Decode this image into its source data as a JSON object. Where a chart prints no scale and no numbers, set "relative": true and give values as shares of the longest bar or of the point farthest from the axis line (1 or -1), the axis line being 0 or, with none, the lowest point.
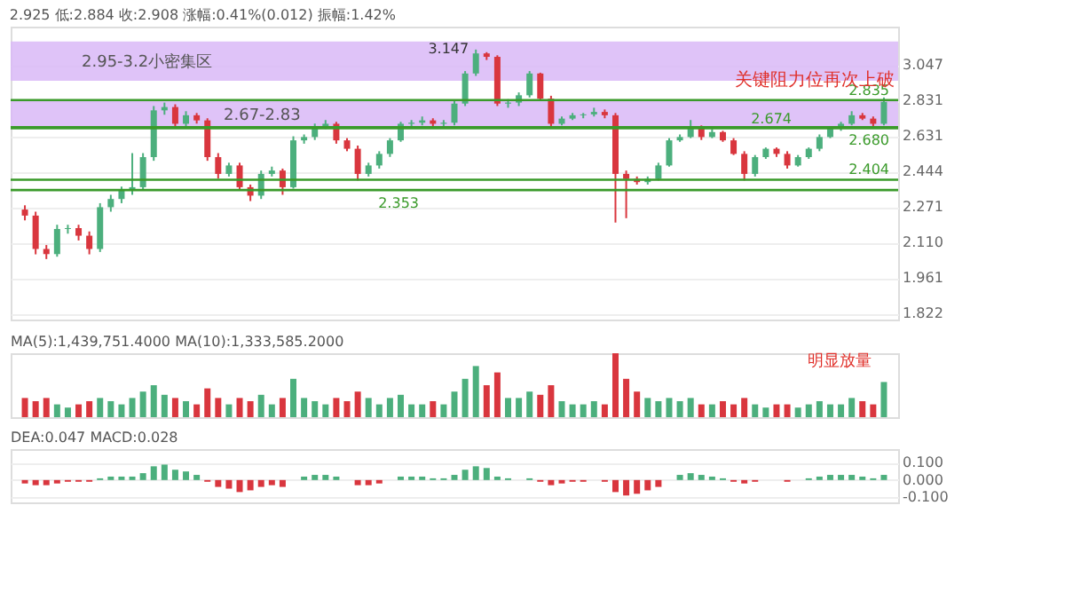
{
  "chart_data": [
    {
      "type": "candlestick",
      "title": "2.925 低:2.884 收:2.908 涨幅:0.41%(0.012) 振幅:1.42%",
      "categories": [
        null,
        null,
        null,
        null,
        null,
        null,
        null,
        null,
        null,
        null,
        null,
        null,
        null,
        null,
        null,
        null,
        null,
        null,
        null,
        null,
        null,
        null,
        null,
        null,
        null,
        null,
        null,
        null,
        null,
        null,
        null,
        null,
        null,
        null,
        null,
        null,
        null,
        null,
        null,
        null,
        null,
        null,
        null,
        null,
        null,
        null,
        null,
        null,
        null,
        null,
        null,
        null,
        null,
        null,
        null,
        null,
        null,
        null,
        null,
        null,
        null,
        null,
        null,
        null,
        null,
        null,
        null,
        null,
        null,
        null,
        null,
        null,
        null,
        null,
        null,
        null,
        null,
        null,
        null,
        null,
        null
      ],
      "ohlc": [
        [
          2.26,
          2.28,
          2.21,
          2.232
        ],
        [
          2.232,
          2.25,
          2.06,
          2.083
        ],
        [
          2.083,
          2.1,
          2.04,
          2.061
        ],
        [
          2.061,
          2.19,
          2.05,
          2.171
        ],
        [
          2.171,
          2.19,
          2.15,
          2.175
        ],
        [
          2.175,
          2.19,
          2.12,
          2.141
        ],
        [
          2.141,
          2.16,
          2.06,
          2.083
        ],
        [
          2.083,
          2.29,
          2.07,
          2.271
        ],
        [
          2.271,
          2.33,
          2.25,
          2.31
        ],
        [
          2.31,
          2.37,
          2.29,
          2.351
        ],
        [
          2.351,
          2.54,
          2.33,
          2.367
        ],
        [
          2.367,
          2.54,
          2.35,
          2.519
        ],
        [
          2.519,
          2.8,
          2.5,
          2.775
        ],
        [
          2.775,
          2.82,
          2.75,
          2.794
        ],
        [
          2.794,
          2.81,
          2.68,
          2.699
        ],
        [
          2.699,
          2.77,
          2.68,
          2.747
        ],
        [
          2.747,
          2.76,
          2.7,
          2.718
        ],
        [
          2.718,
          2.73,
          2.5,
          2.519
        ],
        [
          2.519,
          2.54,
          2.41,
          2.433
        ],
        [
          2.433,
          2.49,
          2.42,
          2.476
        ],
        [
          2.476,
          2.49,
          2.35,
          2.367
        ],
        [
          2.367,
          2.38,
          2.3,
          2.326
        ],
        [
          2.326,
          2.45,
          2.31,
          2.433
        ],
        [
          2.433,
          2.47,
          2.42,
          2.45
        ],
        [
          2.45,
          2.46,
          2.33,
          2.367
        ],
        [
          2.367,
          2.63,
          2.36,
          2.608
        ],
        [
          2.608,
          2.64,
          2.59,
          2.626
        ],
        [
          2.626,
          2.7,
          2.61,
          2.681
        ],
        [
          2.681,
          2.72,
          2.67,
          2.699
        ],
        [
          2.699,
          2.71,
          2.59,
          2.608
        ],
        [
          2.608,
          2.62,
          2.55,
          2.563
        ],
        [
          2.563,
          2.58,
          2.4,
          2.433
        ],
        [
          2.433,
          2.49,
          2.42,
          2.476
        ],
        [
          2.476,
          2.55,
          2.46,
          2.536
        ],
        [
          2.536,
          2.62,
          2.52,
          2.608
        ],
        [
          2.608,
          2.71,
          2.6,
          2.699
        ],
        [
          2.699,
          2.72,
          2.68,
          2.705
        ],
        [
          2.705,
          2.74,
          2.69,
          2.718
        ],
        [
          2.718,
          2.73,
          2.68,
          2.699
        ],
        [
          2.699,
          2.72,
          2.68,
          2.705
        ],
        [
          2.705,
          2.83,
          2.69,
          2.814
        ],
        [
          2.814,
          3.01,
          2.8,
          2.995
        ],
        [
          2.995,
          3.147,
          2.98,
          3.122
        ],
        [
          3.122,
          3.13,
          3.08,
          3.1
        ],
        [
          3.1,
          3.11,
          2.8,
          2.814
        ],
        [
          2.814,
          2.84,
          2.79,
          2.82
        ],
        [
          2.82,
          2.88,
          2.8,
          2.863
        ],
        [
          2.863,
          3.01,
          2.85,
          2.995
        ],
        [
          2.995,
          3.0,
          2.83,
          2.843
        ],
        [
          2.843,
          2.86,
          2.68,
          2.699
        ],
        [
          2.699,
          2.74,
          2.69,
          2.728
        ],
        [
          2.728,
          2.76,
          2.72,
          2.747
        ],
        [
          2.747,
          2.76,
          2.73,
          2.752
        ],
        [
          2.752,
          2.79,
          2.74,
          2.766
        ],
        [
          2.766,
          2.78,
          2.73,
          2.747
        ],
        [
          2.747,
          2.76,
          2.2,
          2.433
        ],
        [
          2.433,
          2.45,
          2.22,
          2.408
        ],
        [
          2.408,
          2.42,
          2.38,
          2.392
        ],
        [
          2.392,
          2.42,
          2.38,
          2.408
        ],
        [
          2.408,
          2.49,
          2.4,
          2.476
        ],
        [
          2.476,
          2.62,
          2.47,
          2.608
        ],
        [
          2.608,
          2.64,
          2.6,
          2.626
        ],
        [
          2.626,
          2.72,
          2.62,
          2.681
        ],
        [
          2.681,
          2.69,
          2.61,
          2.626
        ],
        [
          2.626,
          2.67,
          2.62,
          2.653
        ],
        [
          2.653,
          2.66,
          2.6,
          2.608
        ],
        [
          2.608,
          2.62,
          2.53,
          2.536
        ],
        [
          2.536,
          2.55,
          2.4,
          2.433
        ],
        [
          2.433,
          2.53,
          2.42,
          2.519
        ],
        [
          2.519,
          2.57,
          2.51,
          2.563
        ],
        [
          2.563,
          2.57,
          2.52,
          2.536
        ],
        [
          2.536,
          2.55,
          2.46,
          2.476
        ],
        [
          2.476,
          2.53,
          2.47,
          2.519
        ],
        [
          2.519,
          2.57,
          2.51,
          2.563
        ],
        [
          2.563,
          2.64,
          2.55,
          2.626
        ],
        [
          2.626,
          2.68,
          2.62,
          2.672
        ],
        [
          2.672,
          2.71,
          2.66,
          2.699
        ],
        [
          2.699,
          2.77,
          2.69,
          2.747
        ],
        [
          2.747,
          2.76,
          2.72,
          2.728
        ],
        [
          2.728,
          2.74,
          2.68,
          2.699
        ],
        [
          2.699,
          2.85,
          2.69,
          2.824
        ]
      ],
      "colors": [
        "#d9363e",
        "#d9363e",
        "#d9363e",
        "#4caf7d",
        "#4caf7d",
        "#d9363e",
        "#d9363e",
        "#4caf7d",
        "#4caf7d",
        "#4caf7d",
        "#4caf7d",
        "#4caf7d",
        "#4caf7d",
        "#4caf7d",
        "#d9363e",
        "#4caf7d",
        "#d9363e",
        "#d9363e",
        "#d9363e",
        "#4caf7d",
        "#d9363e",
        "#d9363e",
        "#4caf7d",
        "#4caf7d",
        "#d9363e",
        "#4caf7d",
        "#4caf7d",
        "#4caf7d",
        "#4caf7d",
        "#d9363e",
        "#d9363e",
        "#d9363e",
        "#4caf7d",
        "#4caf7d",
        "#4caf7d",
        "#4caf7d",
        "#4caf7d",
        "#4caf7d",
        "#d9363e",
        "#4caf7d",
        "#4caf7d",
        "#4caf7d",
        "#4caf7d",
        "#d9363e",
        "#d9363e",
        "#4caf7d",
        "#4caf7d",
        "#4caf7d",
        "#d9363e",
        "#d9363e",
        "#4caf7d",
        "#4caf7d",
        "#4caf7d",
        "#4caf7d",
        "#d9363e",
        "#d9363e",
        "#d9363e",
        "#d9363e",
        "#4caf7d",
        "#4caf7d",
        "#4caf7d",
        "#4caf7d",
        "#4caf7d",
        "#d9363e",
        "#4caf7d",
        "#d9363e",
        "#d9363e",
        "#d9363e",
        "#4caf7d",
        "#4caf7d",
        "#d9363e",
        "#d9363e",
        "#4caf7d",
        "#4caf7d",
        "#4caf7d",
        "#4caf7d",
        "#4caf7d",
        "#4caf7d",
        "#d9363e",
        "#d9363e",
        "#4caf7d"
      ],
      "log": "y",
      "ylim": [
        1.8,
        3.3
      ],
      "yticks": [
        1.822,
        1.961,
        {
          "value": 2.11,
          "label": "2.110"
        },
        2.271,
        2.444,
        2.631,
        2.831,
        3.047
      ],
      "grid": "y",
      "bands": [
        {
          "axis": "y",
          "from": 2.95,
          "to": 3.2,
          "label": "2.95-3.2小密集区",
          "color": "#d9b8f7"
        },
        {
          "axis": "y",
          "from": 2.67,
          "to": 2.83,
          "label": "2.67-2.83",
          "color": "#d9b8f7"
        }
      ],
      "ref_lines": [
        {
          "axis": "y",
          "value": 2.835,
          "label": "2.835",
          "color": "#3a9a2a"
        },
        {
          "axis": "y",
          "value": 2.674,
          "label": "2.674",
          "color": "#3a9a2a"
        },
        {
          "axis": "y",
          "value": 2.68,
          "label": "2.680",
          "color": "#3a9a2a"
        },
        {
          "axis": "y",
          "value": 2.404,
          "label": "2.404",
          "color": "#3a9a2a"
        },
        {
          "axis": "y",
          "value": 2.353,
          "label": "2.353",
          "color": "#3a9a2a"
        }
      ],
      "annotations": [
        {
          "text": "3.147",
          "y": 3.147
        },
        "关键阻力位再次上破"
      ]
    },
    {
      "type": "bar",
      "relative": true,
      "title": "MA(5):1,439,751.4000 MA(10):1,333,585.2000",
      "categories": [
        null,
        null,
        null,
        null,
        null,
        null,
        null,
        null,
        null,
        null,
        null,
        null,
        null,
        null,
        null,
        null,
        null,
        null,
        null,
        null,
        null,
        null,
        null,
        null,
        null,
        null,
        null,
        null,
        null,
        null,
        null,
        null,
        null,
        null,
        null,
        null,
        null,
        null,
        null,
        null,
        null,
        null,
        null,
        null,
        null,
        null,
        null,
        null,
        null,
        null,
        null,
        null,
        null,
        null,
        null,
        null,
        null,
        null,
        null,
        null,
        null,
        null,
        null,
        null,
        null,
        null,
        null,
        null,
        null,
        null,
        null,
        null,
        null,
        null,
        null,
        null,
        null,
        null,
        null,
        null,
        null
      ],
      "values": [
        0.3,
        0.25,
        0.3,
        0.2,
        0.15,
        0.2,
        0.25,
        0.3,
        0.25,
        0.2,
        0.3,
        0.4,
        0.5,
        0.35,
        0.3,
        0.25,
        0.2,
        0.45,
        0.3,
        0.2,
        0.3,
        0.25,
        0.35,
        0.2,
        0.3,
        0.6,
        0.3,
        0.25,
        0.2,
        0.3,
        0.25,
        0.4,
        0.3,
        0.2,
        0.3,
        0.35,
        0.2,
        0.2,
        0.25,
        0.2,
        0.4,
        0.6,
        0.8,
        0.5,
        0.7,
        0.3,
        0.3,
        0.4,
        0.35,
        0.5,
        0.25,
        0.2,
        0.2,
        0.25,
        0.2,
        1,
        0.6,
        0.4,
        0.3,
        0.25,
        0.3,
        0.25,
        0.3,
        0.2,
        0.2,
        0.25,
        0.2,
        0.3,
        0.2,
        0.15,
        0.2,
        0.2,
        0.15,
        0.2,
        0.25,
        0.2,
        0.2,
        0.3,
        0.25,
        0.2,
        0.55
      ],
      "colors": [
        "#d9363e",
        "#d9363e",
        "#d9363e",
        "#4caf7d",
        "#4caf7d",
        "#d9363e",
        "#d9363e",
        "#4caf7d",
        "#4caf7d",
        "#4caf7d",
        "#4caf7d",
        "#4caf7d",
        "#4caf7d",
        "#4caf7d",
        "#d9363e",
        "#4caf7d",
        "#d9363e",
        "#d9363e",
        "#d9363e",
        "#4caf7d",
        "#d9363e",
        "#d9363e",
        "#4caf7d",
        "#4caf7d",
        "#d9363e",
        "#4caf7d",
        "#4caf7d",
        "#4caf7d",
        "#4caf7d",
        "#d9363e",
        "#d9363e",
        "#d9363e",
        "#4caf7d",
        "#4caf7d",
        "#4caf7d",
        "#4caf7d",
        "#4caf7d",
        "#4caf7d",
        "#d9363e",
        "#4caf7d",
        "#4caf7d",
        "#4caf7d",
        "#4caf7d",
        "#d9363e",
        "#d9363e",
        "#4caf7d",
        "#4caf7d",
        "#4caf7d",
        "#d9363e",
        "#d9363e",
        "#4caf7d",
        "#4caf7d",
        "#4caf7d",
        "#4caf7d",
        "#d9363e",
        "#d9363e",
        "#d9363e",
        "#d9363e",
        "#4caf7d",
        "#4caf7d",
        "#4caf7d",
        "#4caf7d",
        "#4caf7d",
        "#d9363e",
        "#4caf7d",
        "#d9363e",
        "#d9363e",
        "#d9363e",
        "#4caf7d",
        "#4caf7d",
        "#d9363e",
        "#d9363e",
        "#4caf7d",
        "#4caf7d",
        "#4caf7d",
        "#4caf7d",
        "#4caf7d",
        "#4caf7d",
        "#d9363e",
        "#d9363e",
        "#4caf7d"
      ],
      "annotations": [
        "明显放量"
      ]
    },
    {
      "type": "bar",
      "title": "DEA:0.047 MACD:0.028",
      "categories": [
        null,
        null,
        null,
        null,
        null,
        null,
        null,
        null,
        null,
        null,
        null,
        null,
        null,
        null,
        null,
        null,
        null,
        null,
        null,
        null,
        null,
        null,
        null,
        null,
        null,
        null,
        null,
        null,
        null,
        null,
        null,
        null,
        null,
        null,
        null,
        null,
        null,
        null,
        null,
        null,
        null,
        null,
        null,
        null,
        null,
        null,
        null,
        null,
        null,
        null,
        null,
        null,
        null,
        null,
        null,
        null,
        null,
        null,
        null,
        null,
        null,
        null,
        null,
        null,
        null,
        null,
        null,
        null,
        null,
        null,
        null,
        null,
        null,
        null,
        null,
        null,
        null,
        null,
        null,
        null,
        null
      ],
      "values": [
        -0.02,
        -0.03,
        -0.03,
        -0.02,
        -0.01,
        -0.01,
        -0.01,
        0.01,
        0.02,
        0.02,
        0.02,
        0.04,
        0.08,
        0.09,
        0.06,
        0.05,
        0.03,
        -0.01,
        -0.04,
        -0.05,
        -0.07,
        -0.06,
        -0.04,
        -0.03,
        -0.04,
        0.0,
        0.02,
        0.03,
        0.03,
        0.02,
        0.0,
        -0.03,
        -0.03,
        -0.02,
        0.0,
        0.02,
        0.02,
        0.02,
        0.01,
        0.01,
        0.03,
        0.06,
        0.08,
        0.07,
        0.02,
        0.01,
        0.0,
        0.01,
        -0.01,
        -0.03,
        -0.02,
        -0.01,
        -0.01,
        0.0,
        -0.01,
        -0.07,
        -0.09,
        -0.08,
        -0.06,
        -0.04,
        0.0,
        0.03,
        0.04,
        0.03,
        0.02,
        0.01,
        -0.01,
        -0.02,
        -0.01,
        0.0,
        0.0,
        -0.01,
        0.0,
        0.01,
        0.02,
        0.03,
        0.03,
        0.03,
        0.02,
        0.01,
        0.03
      ],
      "colors": [
        "#d9363e",
        "#d9363e",
        "#d9363e",
        "#d9363e",
        "#d9363e",
        "#d9363e",
        "#d9363e",
        "#4caf7d",
        "#4caf7d",
        "#4caf7d",
        "#4caf7d",
        "#4caf7d",
        "#4caf7d",
        "#4caf7d",
        "#4caf7d",
        "#4caf7d",
        "#4caf7d",
        "#d9363e",
        "#d9363e",
        "#d9363e",
        "#d9363e",
        "#d9363e",
        "#d9363e",
        "#d9363e",
        "#d9363e",
        "#4caf7d",
        "#4caf7d",
        "#4caf7d",
        "#4caf7d",
        "#4caf7d",
        "#4caf7d",
        "#d9363e",
        "#d9363e",
        "#d9363e",
        "#4caf7d",
        "#4caf7d",
        "#4caf7d",
        "#4caf7d",
        "#4caf7d",
        "#4caf7d",
        "#4caf7d",
        "#4caf7d",
        "#4caf7d",
        "#4caf7d",
        "#4caf7d",
        "#4caf7d",
        "#4caf7d",
        "#4caf7d",
        "#d9363e",
        "#d9363e",
        "#d9363e",
        "#d9363e",
        "#d9363e",
        "#4caf7d",
        "#d9363e",
        "#d9363e",
        "#d9363e",
        "#d9363e",
        "#d9363e",
        "#d9363e",
        "#4caf7d",
        "#4caf7d",
        "#4caf7d",
        "#4caf7d",
        "#4caf7d",
        "#4caf7d",
        "#d9363e",
        "#d9363e",
        "#d9363e",
        "#4caf7d",
        "#4caf7d",
        "#d9363e",
        "#4caf7d",
        "#4caf7d",
        "#4caf7d",
        "#4caf7d",
        "#4caf7d",
        "#4caf7d",
        "#4caf7d",
        "#4caf7d",
        "#4caf7d"
      ],
      "ylim": [
        -0.13,
        0.18
      ],
      "yticks": [
        {
          "value": -0.1,
          "label": "-0.100"
        },
        {
          "value": 0,
          "label": "0.000"
        },
        {
          "value": 0.1,
          "label": "0.100"
        }
      ],
      "grid": "y"
    }
  ]
}
